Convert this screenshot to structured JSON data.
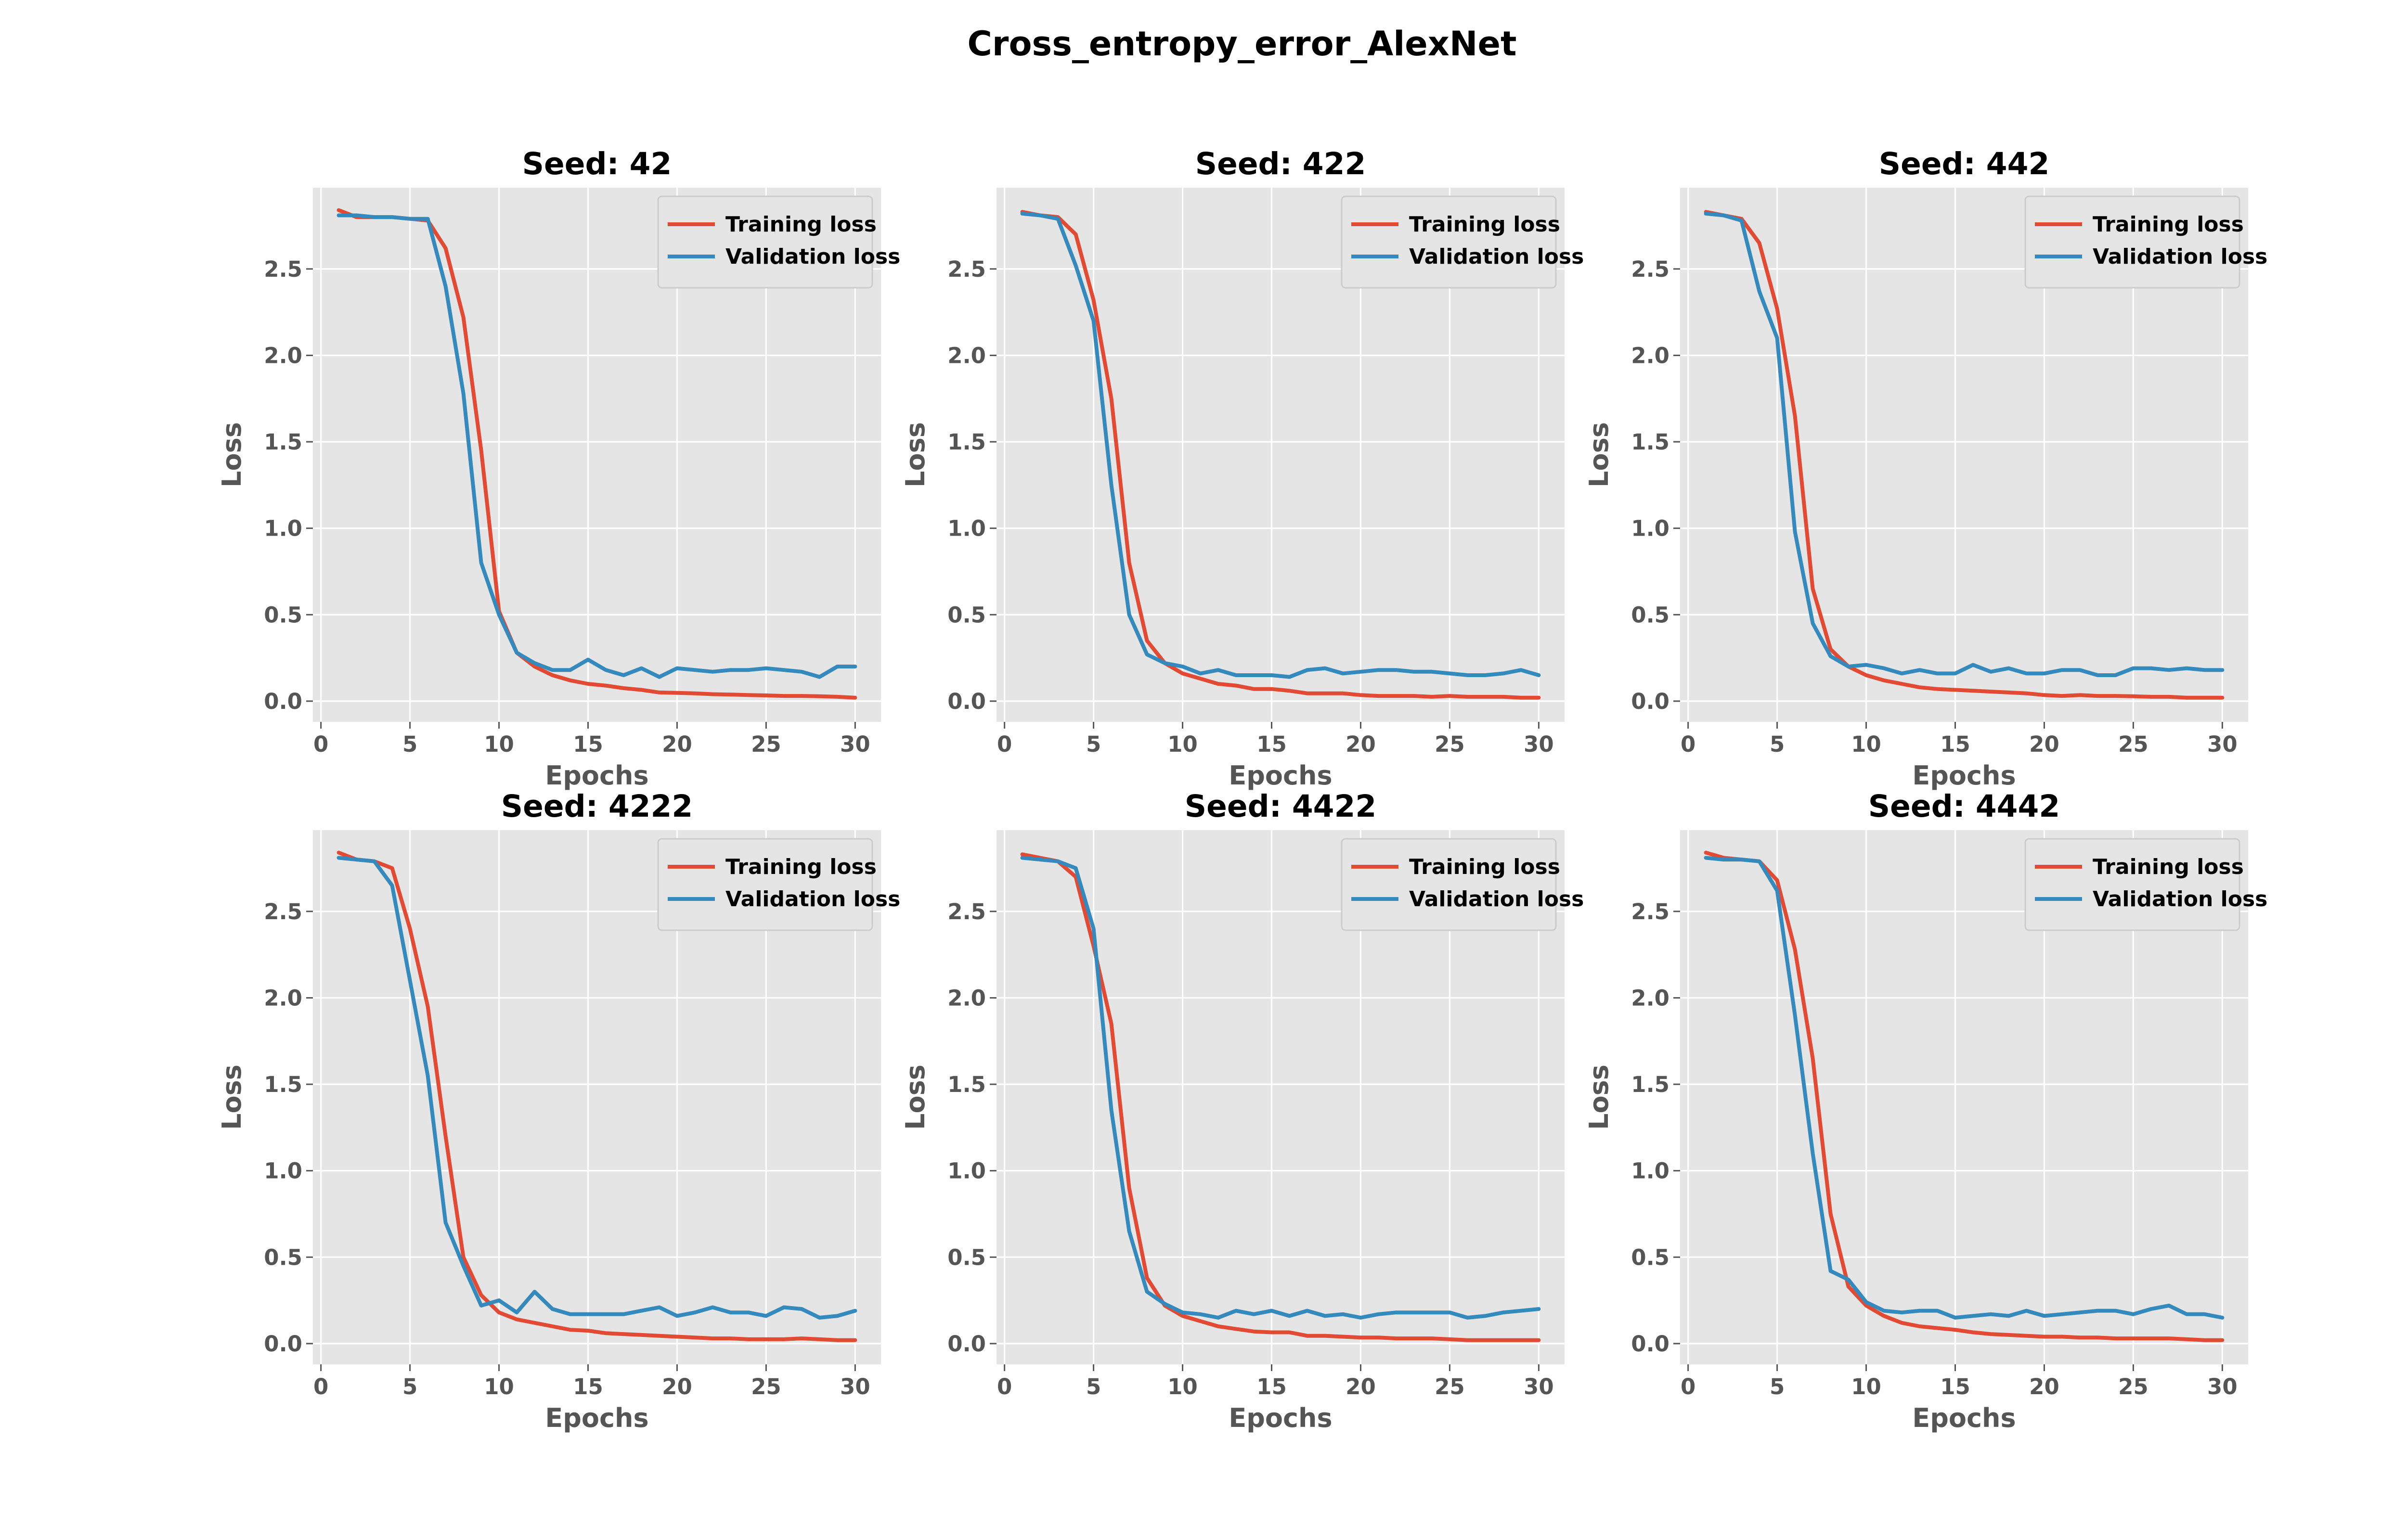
{
  "figure_title": "Cross_entropy_error_AlexNet",
  "colors": {
    "training": "#E24A33",
    "validation": "#348ABD",
    "axes_bg": "#E5E5E5",
    "grid": "#FFFFFF",
    "legend_bg": "#E5E5E5"
  },
  "chart_data": [
    {
      "type": "line",
      "title": "Seed: 42",
      "xlabel": "Epochs",
      "ylabel": "Loss",
      "xlim": [
        -0.45,
        31.45
      ],
      "ylim": [
        -0.12,
        2.97
      ],
      "xticks": [
        0,
        5,
        10,
        15,
        20,
        25,
        30
      ],
      "yticks": [
        0.0,
        0.5,
        1.0,
        1.5,
        2.0,
        2.5
      ],
      "grid": true,
      "legend_position": "top-right",
      "x": [
        1,
        2,
        3,
        4,
        5,
        6,
        7,
        8,
        9,
        10,
        11,
        12,
        13,
        14,
        15,
        16,
        17,
        18,
        19,
        20,
        21,
        22,
        23,
        24,
        25,
        26,
        27,
        28,
        29,
        30
      ],
      "series": [
        {
          "name": "Training loss",
          "color_key": "training",
          "values": [
            2.84,
            2.8,
            2.8,
            2.8,
            2.79,
            2.78,
            2.62,
            2.22,
            1.45,
            0.52,
            0.28,
            0.2,
            0.15,
            0.12,
            0.1,
            0.09,
            0.075,
            0.065,
            0.05,
            0.048,
            0.045,
            0.04,
            0.038,
            0.035,
            0.033,
            0.03,
            0.03,
            0.028,
            0.025,
            0.02
          ]
        },
        {
          "name": "Validation loss",
          "color_key": "validation",
          "values": [
            2.81,
            2.81,
            2.8,
            2.8,
            2.79,
            2.79,
            2.4,
            1.78,
            0.8,
            0.5,
            0.28,
            0.22,
            0.18,
            0.18,
            0.24,
            0.18,
            0.15,
            0.19,
            0.14,
            0.19,
            0.18,
            0.17,
            0.18,
            0.18,
            0.19,
            0.18,
            0.17,
            0.14,
            0.2,
            0.2
          ]
        }
      ]
    },
    {
      "type": "line",
      "title": "Seed: 422",
      "xlabel": "Epochs",
      "ylabel": "Loss",
      "xlim": [
        -0.45,
        31.45
      ],
      "ylim": [
        -0.12,
        2.97
      ],
      "xticks": [
        0,
        5,
        10,
        15,
        20,
        25,
        30
      ],
      "yticks": [
        0.0,
        0.5,
        1.0,
        1.5,
        2.0,
        2.5
      ],
      "grid": true,
      "legend_position": "top-right",
      "x": [
        1,
        2,
        3,
        4,
        5,
        6,
        7,
        8,
        9,
        10,
        11,
        12,
        13,
        14,
        15,
        16,
        17,
        18,
        19,
        20,
        21,
        22,
        23,
        24,
        25,
        26,
        27,
        28,
        29,
        30
      ],
      "series": [
        {
          "name": "Training loss",
          "color_key": "training",
          "values": [
            2.83,
            2.81,
            2.8,
            2.7,
            2.32,
            1.75,
            0.8,
            0.35,
            0.22,
            0.16,
            0.13,
            0.1,
            0.09,
            0.07,
            0.07,
            0.06,
            0.045,
            0.045,
            0.045,
            0.035,
            0.03,
            0.03,
            0.03,
            0.025,
            0.03,
            0.025,
            0.025,
            0.025,
            0.02,
            0.02
          ]
        },
        {
          "name": "Validation loss",
          "color_key": "validation",
          "values": [
            2.82,
            2.81,
            2.79,
            2.52,
            2.2,
            1.25,
            0.5,
            0.27,
            0.22,
            0.2,
            0.16,
            0.18,
            0.15,
            0.15,
            0.15,
            0.14,
            0.18,
            0.19,
            0.16,
            0.17,
            0.18,
            0.18,
            0.17,
            0.17,
            0.16,
            0.15,
            0.15,
            0.16,
            0.18,
            0.15
          ]
        }
      ]
    },
    {
      "type": "line",
      "title": "Seed: 442",
      "xlabel": "Epochs",
      "ylabel": "Loss",
      "xlim": [
        -0.45,
        31.45
      ],
      "ylim": [
        -0.12,
        2.97
      ],
      "xticks": [
        0,
        5,
        10,
        15,
        20,
        25,
        30
      ],
      "yticks": [
        0.0,
        0.5,
        1.0,
        1.5,
        2.0,
        2.5
      ],
      "grid": true,
      "legend_position": "top-right",
      "x": [
        1,
        2,
        3,
        4,
        5,
        6,
        7,
        8,
        9,
        10,
        11,
        12,
        13,
        14,
        15,
        16,
        17,
        18,
        19,
        20,
        21,
        22,
        23,
        24,
        25,
        26,
        27,
        28,
        29,
        30
      ],
      "series": [
        {
          "name": "Training loss",
          "color_key": "training",
          "values": [
            2.83,
            2.81,
            2.79,
            2.65,
            2.27,
            1.65,
            0.65,
            0.3,
            0.2,
            0.15,
            0.12,
            0.1,
            0.08,
            0.07,
            0.065,
            0.06,
            0.055,
            0.05,
            0.045,
            0.035,
            0.03,
            0.035,
            0.03,
            0.03,
            0.028,
            0.025,
            0.025,
            0.02,
            0.02,
            0.02
          ]
        },
        {
          "name": "Validation loss",
          "color_key": "validation",
          "values": [
            2.82,
            2.81,
            2.78,
            2.37,
            2.1,
            0.98,
            0.45,
            0.26,
            0.2,
            0.21,
            0.19,
            0.16,
            0.18,
            0.16,
            0.16,
            0.21,
            0.17,
            0.19,
            0.16,
            0.16,
            0.18,
            0.18,
            0.15,
            0.15,
            0.19,
            0.19,
            0.18,
            0.19,
            0.18,
            0.18
          ]
        }
      ]
    },
    {
      "type": "line",
      "title": "Seed: 4222",
      "xlabel": "Epochs",
      "ylabel": "Loss",
      "xlim": [
        -0.45,
        31.45
      ],
      "ylim": [
        -0.12,
        2.97
      ],
      "xticks": [
        0,
        5,
        10,
        15,
        20,
        25,
        30
      ],
      "yticks": [
        0.0,
        0.5,
        1.0,
        1.5,
        2.0,
        2.5
      ],
      "grid": true,
      "legend_position": "top-right",
      "x": [
        1,
        2,
        3,
        4,
        5,
        6,
        7,
        8,
        9,
        10,
        11,
        12,
        13,
        14,
        15,
        16,
        17,
        18,
        19,
        20,
        21,
        22,
        23,
        24,
        25,
        26,
        27,
        28,
        29,
        30
      ],
      "series": [
        {
          "name": "Training loss",
          "color_key": "training",
          "values": [
            2.84,
            2.8,
            2.79,
            2.75,
            2.4,
            1.95,
            1.2,
            0.5,
            0.28,
            0.18,
            0.14,
            0.12,
            0.1,
            0.08,
            0.075,
            0.06,
            0.055,
            0.05,
            0.045,
            0.04,
            0.035,
            0.03,
            0.03,
            0.025,
            0.025,
            0.025,
            0.03,
            0.025,
            0.02,
            0.02
          ]
        },
        {
          "name": "Validation loss",
          "color_key": "validation",
          "values": [
            2.81,
            2.8,
            2.79,
            2.65,
            2.1,
            1.55,
            0.7,
            0.45,
            0.22,
            0.25,
            0.18,
            0.3,
            0.2,
            0.17,
            0.17,
            0.17,
            0.17,
            0.19,
            0.21,
            0.16,
            0.18,
            0.21,
            0.18,
            0.18,
            0.16,
            0.21,
            0.2,
            0.15,
            0.16,
            0.19
          ]
        }
      ]
    },
    {
      "type": "line",
      "title": "Seed: 4422",
      "xlabel": "Epochs",
      "ylabel": "Loss",
      "xlim": [
        -0.45,
        31.45
      ],
      "ylim": [
        -0.12,
        2.97
      ],
      "xticks": [
        0,
        5,
        10,
        15,
        20,
        25,
        30
      ],
      "yticks": [
        0.0,
        0.5,
        1.0,
        1.5,
        2.0,
        2.5
      ],
      "grid": true,
      "legend_position": "top-right",
      "x": [
        1,
        2,
        3,
        4,
        5,
        6,
        7,
        8,
        9,
        10,
        11,
        12,
        13,
        14,
        15,
        16,
        17,
        18,
        19,
        20,
        21,
        22,
        23,
        24,
        25,
        26,
        27,
        28,
        29,
        30
      ],
      "series": [
        {
          "name": "Training loss",
          "color_key": "training",
          "values": [
            2.83,
            2.81,
            2.79,
            2.7,
            2.3,
            1.85,
            0.9,
            0.38,
            0.22,
            0.16,
            0.13,
            0.1,
            0.085,
            0.07,
            0.065,
            0.065,
            0.045,
            0.045,
            0.04,
            0.035,
            0.035,
            0.03,
            0.03,
            0.03,
            0.025,
            0.02,
            0.02,
            0.02,
            0.02,
            0.02
          ]
        },
        {
          "name": "Validation loss",
          "color_key": "validation",
          "values": [
            2.81,
            2.8,
            2.79,
            2.75,
            2.4,
            1.35,
            0.65,
            0.3,
            0.23,
            0.18,
            0.17,
            0.15,
            0.19,
            0.17,
            0.19,
            0.16,
            0.19,
            0.16,
            0.17,
            0.15,
            0.17,
            0.18,
            0.18,
            0.18,
            0.18,
            0.15,
            0.16,
            0.18,
            0.19,
            0.2
          ]
        }
      ]
    },
    {
      "type": "line",
      "title": "Seed: 4442",
      "xlabel": "Epochs",
      "ylabel": "Loss",
      "xlim": [
        -0.45,
        31.45
      ],
      "ylim": [
        -0.12,
        2.97
      ],
      "xticks": [
        0,
        5,
        10,
        15,
        20,
        25,
        30
      ],
      "yticks": [
        0.0,
        0.5,
        1.0,
        1.5,
        2.0,
        2.5
      ],
      "grid": true,
      "legend_position": "top-right",
      "x": [
        1,
        2,
        3,
        4,
        5,
        6,
        7,
        8,
        9,
        10,
        11,
        12,
        13,
        14,
        15,
        16,
        17,
        18,
        19,
        20,
        21,
        22,
        23,
        24,
        25,
        26,
        27,
        28,
        29,
        30
      ],
      "series": [
        {
          "name": "Training loss",
          "color_key": "training",
          "values": [
            2.84,
            2.81,
            2.8,
            2.79,
            2.68,
            2.28,
            1.65,
            0.75,
            0.33,
            0.22,
            0.16,
            0.12,
            0.1,
            0.09,
            0.08,
            0.065,
            0.055,
            0.05,
            0.045,
            0.04,
            0.04,
            0.035,
            0.035,
            0.03,
            0.03,
            0.03,
            0.03,
            0.025,
            0.02,
            0.02
          ]
        },
        {
          "name": "Validation loss",
          "color_key": "validation",
          "values": [
            2.81,
            2.8,
            2.8,
            2.79,
            2.62,
            1.9,
            1.1,
            0.42,
            0.37,
            0.24,
            0.19,
            0.18,
            0.19,
            0.19,
            0.15,
            0.16,
            0.17,
            0.16,
            0.19,
            0.16,
            0.17,
            0.18,
            0.19,
            0.19,
            0.17,
            0.2,
            0.22,
            0.17,
            0.17,
            0.15
          ]
        }
      ]
    }
  ]
}
